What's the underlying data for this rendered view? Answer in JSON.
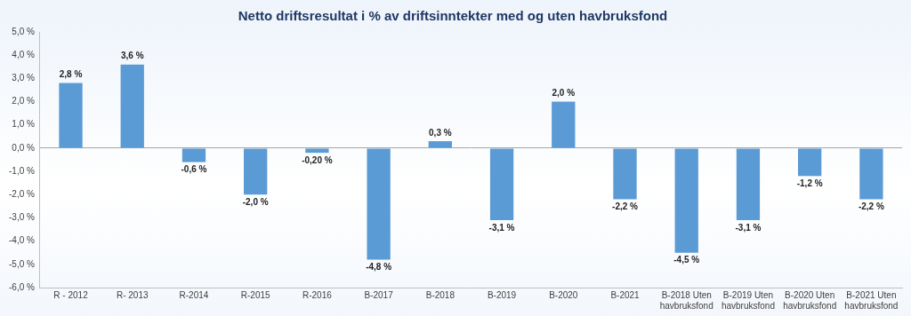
{
  "chart_data": {
    "type": "bar",
    "title": "Netto driftsresultat i % av driftsinntekter med og uten havbruksfond",
    "categories": [
      "R - 2012",
      "R- 2013",
      "R-2014",
      "R-2015",
      "R-2016",
      "B-2017",
      "B-2018",
      "B-2019",
      "B-2020",
      "B-2021",
      "B-2018 Uten havbruksfond",
      "B-2019 Uten havbruksfond",
      "B-2020 Uten havbruksfond",
      "B-2021 Uten havbruksfond"
    ],
    "values": [
      2.8,
      3.6,
      -0.6,
      -2.0,
      -0.2,
      -4.8,
      0.3,
      -3.1,
      2.0,
      -2.2,
      -4.5,
      -3.1,
      -1.2,
      -2.2
    ],
    "value_labels": [
      "2,8 %",
      "3,6 %",
      "-0,6 %",
      "-2,0 %",
      "-0,20 %",
      "-4,8 %",
      "0,3 %",
      "-3,1 %",
      "2,0 %",
      "-2,2 %",
      "-4,5 %",
      "-3,1 %",
      "-1,2 %",
      "-2,2 %"
    ],
    "color": "#5b9bd5",
    "ylim": [
      -6,
      5
    ],
    "yticks": [
      {
        "value": -6,
        "label": "-6,0 %"
      },
      {
        "value": -5,
        "label": "-5,0 %"
      },
      {
        "value": -4,
        "label": "-4,0 %"
      },
      {
        "value": -3,
        "label": "-3,0 %"
      },
      {
        "value": -2,
        "label": "-2,0 %"
      },
      {
        "value": -1,
        "label": "-1,0 %"
      },
      {
        "value": 0,
        "label": "0,0 %"
      },
      {
        "value": 1,
        "label": "1,0 %"
      },
      {
        "value": 2,
        "label": "2,0 %"
      },
      {
        "value": 3,
        "label": "3,0 %"
      },
      {
        "value": 4,
        "label": "4,0 %"
      },
      {
        "value": 5,
        "label": "5,0 %"
      }
    ],
    "grid": false,
    "data_labels": true
  }
}
